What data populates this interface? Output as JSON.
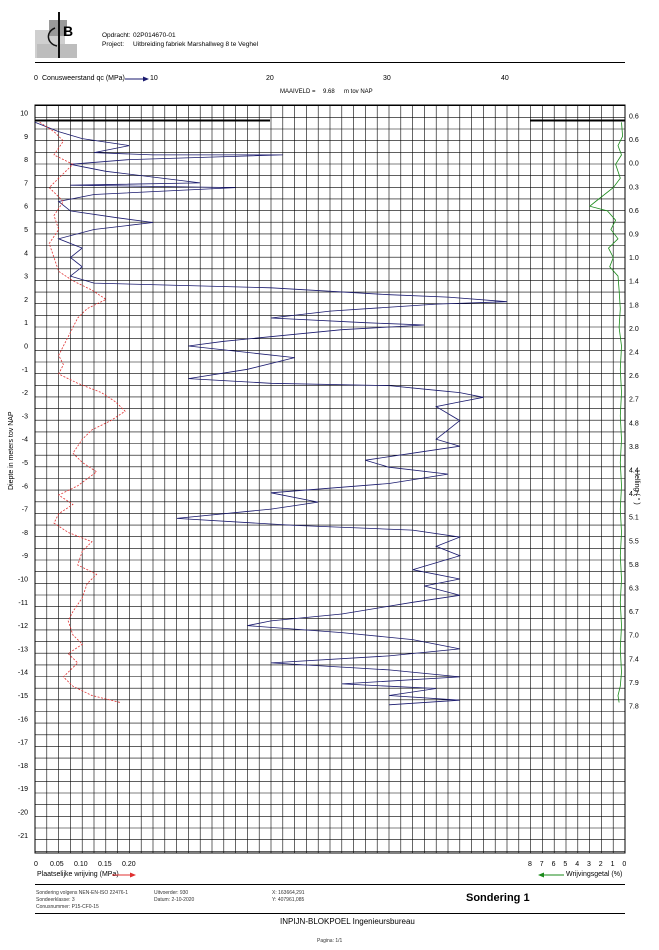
{
  "header": {
    "opdracht_label": "Opdracht:",
    "opdracht_value": "02P014670-01",
    "project_label": "Project:",
    "project_value": "Uitbreiding fabriek Marshallweg 8 te Veghel"
  },
  "chart_data": {
    "type": "line",
    "top_axis_label": "Conusweerstand qc (MPa)",
    "top_axis_ticks": [
      "0",
      "10",
      "20",
      "30",
      "40"
    ],
    "maaiveld_label": "MAAIVELD =",
    "maaiveld_value": "9.68",
    "maaiveld_unit": "m tov NAP",
    "ylabel": "Diepte in meters tov NAP",
    "ylim": [
      -22,
      10.5
    ],
    "y_ticks": [
      10,
      9,
      8,
      7,
      6,
      5,
      4,
      3,
      2,
      1,
      0,
      -1,
      -2,
      -3,
      -4,
      -5,
      -6,
      -7,
      -8,
      -9,
      -10,
      -11,
      -12,
      -13,
      -14,
      -15,
      -16,
      -17,
      -18,
      -19,
      -20,
      -21
    ],
    "qc_range": [
      0,
      50
    ],
    "right_axis_label": "Helling ( ° )",
    "helling_labels": [
      "0.6",
      "0.6",
      "0.0",
      "0.3",
      "0.6",
      "0.9",
      "1.0",
      "1.4",
      "1.8",
      "2.0",
      "2.4",
      "2.6",
      "2.7",
      "4.8",
      "3.8",
      "4.4",
      "4.7",
      "5.1",
      "5.5",
      "5.8",
      "6.3",
      "6.7",
      "7.0",
      "7.4",
      "7.9",
      "7.8"
    ],
    "bottom_left_label": "Plaatselijke wrijving (MPa)",
    "bottom_left_ticks": [
      "0",
      "0.05",
      "0.10",
      "0.15",
      "0.20"
    ],
    "fs_range": [
      0,
      0.5
    ],
    "bottom_right_label": "Wrijvingsgetal (%)",
    "bottom_right_ticks": [
      "8",
      "7",
      "6",
      "5",
      "4",
      "3",
      "2",
      "1",
      "0"
    ],
    "rf_range": [
      0,
      8
    ],
    "series": [
      {
        "name": "Conusweerstand qc",
        "color": "#1a1a6e",
        "points": [
          [
            0,
            9.6
          ],
          [
            2,
            9.2
          ],
          [
            4,
            8.9
          ],
          [
            8,
            8.6
          ],
          [
            5,
            8.3
          ],
          [
            10,
            8.2
          ],
          [
            21,
            8.2
          ],
          [
            8,
            8.0
          ],
          [
            3,
            7.8
          ],
          [
            6,
            7.5
          ],
          [
            14,
            7.0
          ],
          [
            3,
            6.9
          ],
          [
            17,
            6.8
          ],
          [
            5,
            6.5
          ],
          [
            2,
            6.2
          ],
          [
            3,
            5.8
          ],
          [
            7,
            5.5
          ],
          [
            10,
            5.3
          ],
          [
            5,
            5.0
          ],
          [
            2,
            4.6
          ],
          [
            4,
            4.2
          ],
          [
            3,
            3.8
          ],
          [
            4,
            3.4
          ],
          [
            3,
            3.0
          ],
          [
            5,
            2.7
          ],
          [
            20,
            2.5
          ],
          [
            30,
            2.2
          ],
          [
            35,
            2.1
          ],
          [
            40,
            1.9
          ],
          [
            34,
            1.8
          ],
          [
            25,
            1.5
          ],
          [
            20,
            1.2
          ],
          [
            28,
            1.0
          ],
          [
            33,
            0.9
          ],
          [
            26,
            0.7
          ],
          [
            16,
            0.2
          ],
          [
            13,
            0
          ],
          [
            22,
            -0.5
          ],
          [
            18,
            -1.0
          ],
          [
            13,
            -1.4
          ],
          [
            20,
            -1.6
          ],
          [
            30,
            -1.7
          ],
          [
            34,
            -1.9
          ],
          [
            36,
            -2.0
          ],
          [
            38,
            -2.2
          ],
          [
            36,
            -2.4
          ],
          [
            34,
            -2.6
          ],
          [
            36,
            -3.2
          ],
          [
            35,
            -3.6
          ],
          [
            34,
            -4.0
          ],
          [
            36,
            -4.3
          ],
          [
            32,
            -4.6
          ],
          [
            28,
            -4.9
          ],
          [
            30,
            -5.2
          ],
          [
            35,
            -5.5
          ],
          [
            30,
            -5.9
          ],
          [
            20,
            -6.3
          ],
          [
            24,
            -6.7
          ],
          [
            20,
            -7.0
          ],
          [
            12,
            -7.4
          ],
          [
            22,
            -7.7
          ],
          [
            32,
            -7.9
          ],
          [
            36,
            -8.2
          ],
          [
            34,
            -8.6
          ],
          [
            36,
            -9.0
          ],
          [
            34,
            -9.3
          ],
          [
            32,
            -9.6
          ],
          [
            36,
            -10.0
          ],
          [
            33,
            -10.3
          ],
          [
            36,
            -10.7
          ],
          [
            32,
            -11.0
          ],
          [
            26,
            -11.5
          ],
          [
            20,
            -11.8
          ],
          [
            18,
            -12.0
          ],
          [
            26,
            -12.3
          ],
          [
            32,
            -12.6
          ],
          [
            36,
            -13.0
          ],
          [
            30,
            -13.3
          ],
          [
            20,
            -13.6
          ],
          [
            30,
            -13.9
          ],
          [
            36,
            -14.2
          ],
          [
            26,
            -14.5
          ],
          [
            34,
            -14.7
          ],
          [
            30,
            -15.0
          ],
          [
            36,
            -15.2
          ],
          [
            30,
            -15.4
          ]
        ]
      },
      {
        "name": "Plaatselijke wrijving",
        "color": "#e03030",
        "points": [
          [
            0.01,
            9.6
          ],
          [
            0.04,
            9.2
          ],
          [
            0.06,
            8.8
          ],
          [
            0.04,
            8.2
          ],
          [
            0.08,
            7.8
          ],
          [
            0.05,
            7.2
          ],
          [
            0.03,
            6.8
          ],
          [
            0.06,
            6.2
          ],
          [
            0.04,
            5.6
          ],
          [
            0.05,
            5.0
          ],
          [
            0.03,
            4.4
          ],
          [
            0.04,
            3.8
          ],
          [
            0.05,
            3.2
          ],
          [
            0.08,
            2.8
          ],
          [
            0.12,
            2.4
          ],
          [
            0.15,
            2.0
          ],
          [
            0.11,
            1.6
          ],
          [
            0.09,
            1.2
          ],
          [
            0.08,
            0.8
          ],
          [
            0.07,
            0.4
          ],
          [
            0.06,
            0
          ],
          [
            0.05,
            -0.4
          ],
          [
            0.06,
            -0.8
          ],
          [
            0.05,
            -1.2
          ],
          [
            0.09,
            -1.6
          ],
          [
            0.14,
            -2.0
          ],
          [
            0.17,
            -2.4
          ],
          [
            0.19,
            -2.8
          ],
          [
            0.16,
            -3.2
          ],
          [
            0.12,
            -3.6
          ],
          [
            0.1,
            -4.0
          ],
          [
            0.08,
            -4.6
          ],
          [
            0.1,
            -5.0
          ],
          [
            0.13,
            -5.4
          ],
          [
            0.09,
            -6.0
          ],
          [
            0.05,
            -6.4
          ],
          [
            0.08,
            -6.8
          ],
          [
            0.05,
            -7.2
          ],
          [
            0.04,
            -7.6
          ],
          [
            0.07,
            -8.0
          ],
          [
            0.12,
            -8.4
          ],
          [
            0.1,
            -8.8
          ],
          [
            0.09,
            -9.4
          ],
          [
            0.13,
            -9.8
          ],
          [
            0.11,
            -10.2
          ],
          [
            0.1,
            -10.8
          ],
          [
            0.08,
            -11.4
          ],
          [
            0.07,
            -11.8
          ],
          [
            0.08,
            -12.4
          ],
          [
            0.1,
            -12.8
          ],
          [
            0.07,
            -13.2
          ],
          [
            0.09,
            -13.6
          ],
          [
            0.06,
            -14.2
          ],
          [
            0.08,
            -14.6
          ],
          [
            0.12,
            -15.0
          ],
          [
            0.18,
            -15.3
          ]
        ]
      },
      {
        "name": "Wrijvingsgetal",
        "color": "#1a8a1a",
        "points": [
          [
            0.3,
            9.6
          ],
          [
            0.2,
            9.0
          ],
          [
            0.6,
            8.6
          ],
          [
            0.3,
            8.2
          ],
          [
            0.8,
            7.8
          ],
          [
            0.4,
            7.2
          ],
          [
            1.0,
            6.8
          ],
          [
            2.5,
            6.2
          ],
          [
            3.0,
            6.0
          ],
          [
            1.5,
            5.8
          ],
          [
            0.8,
            5.4
          ],
          [
            1.2,
            5.0
          ],
          [
            0.6,
            4.6
          ],
          [
            1.4,
            4.2
          ],
          [
            1.0,
            3.8
          ],
          [
            1.3,
            3.4
          ],
          [
            0.6,
            3.0
          ],
          [
            0.5,
            2.4
          ],
          [
            0.4,
            1.6
          ],
          [
            0.5,
            0.8
          ],
          [
            0.3,
            0
          ],
          [
            0.4,
            -1.0
          ],
          [
            0.3,
            -2.0
          ],
          [
            0.4,
            -3.0
          ],
          [
            0.3,
            -4.0
          ],
          [
            0.4,
            -5.0
          ],
          [
            0.3,
            -6.0
          ],
          [
            0.4,
            -7.0
          ],
          [
            0.3,
            -8.0
          ],
          [
            0.4,
            -9.0
          ],
          [
            0.3,
            -10.0
          ],
          [
            0.4,
            -11.0
          ],
          [
            0.3,
            -12.0
          ],
          [
            0.4,
            -13.0
          ],
          [
            0.3,
            -14.0
          ],
          [
            0.4,
            -14.6
          ],
          [
            0.6,
            -15.0
          ],
          [
            0.5,
            -15.3
          ]
        ]
      }
    ]
  },
  "footer": {
    "l1": "Sondering volgens NEN-EN-ISO 22476-1",
    "l2": "Sondeerklasse: 3",
    "l3": "Conusnummer: P15-CF0-15",
    "m1": "Uitvoerder: 930",
    "m2": "Datum:  2-10-2020",
    "r1": "X: 163664,291",
    "r2": "Y: 407961,085",
    "title": "Sondering  1",
    "company": "INPIJN-BLOKPOEL Ingenieursbureau",
    "page": "Pagina: 1/1"
  },
  "colors": {
    "qc": "#1a1a6e",
    "fs": "#e03030",
    "rf": "#1a8a1a"
  }
}
